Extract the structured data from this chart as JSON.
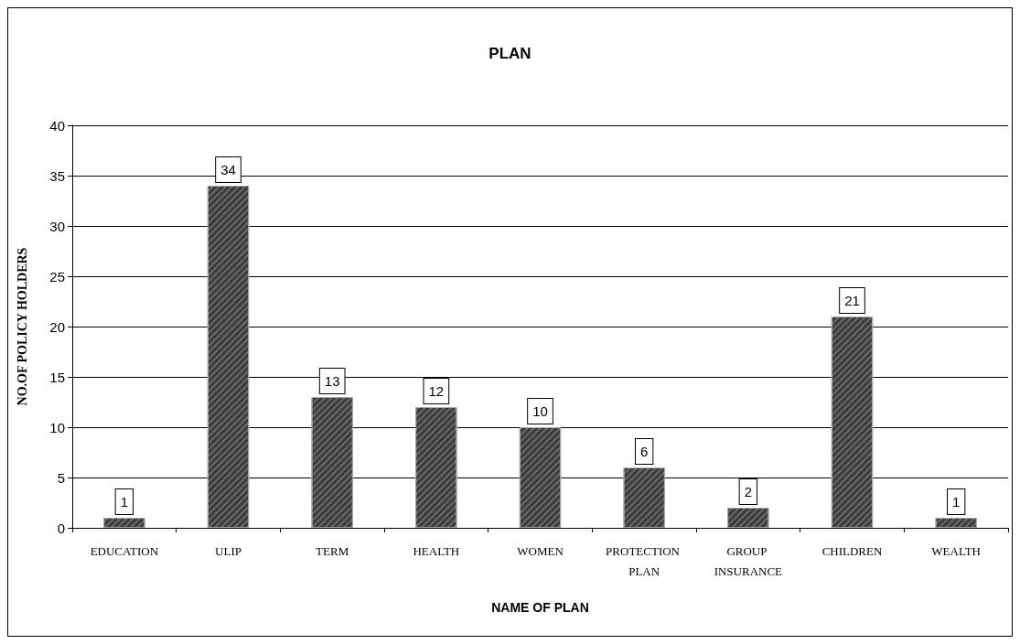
{
  "chart_data": {
    "type": "bar",
    "title": "PLAN",
    "xlabel": "NAME OF PLAN",
    "ylabel": "NO.OF POLICY HOLDERS",
    "categories": [
      "EDUCATION",
      "ULIP",
      "TERM",
      "HEALTH",
      "WOMEN",
      "PROTECTION PLAN",
      "GROUP INSURANCE",
      "CHILDREN",
      "WEALTH"
    ],
    "values": [
      1,
      34,
      13,
      12,
      10,
      6,
      2,
      21,
      1
    ],
    "color": "#3a3a3a",
    "ylim": [
      0,
      40
    ],
    "yticks": [
      0,
      5,
      10,
      15,
      20,
      25,
      30,
      35,
      40
    ],
    "grid": "y",
    "data_labels": true
  }
}
